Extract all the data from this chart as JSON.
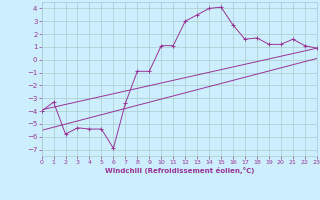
{
  "xlabel": "Windchill (Refroidissement éolien,°C)",
  "bg_color": "#cceeff",
  "grid_color": "#aacccc",
  "line_color": "#993399",
  "xlim": [
    0,
    23
  ],
  "ylim": [
    -7.5,
    4.5
  ],
  "xticks": [
    0,
    1,
    2,
    3,
    4,
    5,
    6,
    7,
    8,
    9,
    10,
    11,
    12,
    13,
    14,
    15,
    16,
    17,
    18,
    19,
    20,
    21,
    22,
    23
  ],
  "yticks": [
    -7,
    -6,
    -5,
    -4,
    -3,
    -2,
    -1,
    0,
    1,
    2,
    3,
    4
  ],
  "line1_x": [
    0,
    1,
    2,
    3,
    4,
    5,
    6,
    7,
    8,
    9,
    10,
    11,
    12,
    13,
    14,
    15,
    16,
    17,
    18,
    19,
    20,
    21,
    22,
    23
  ],
  "line1_y": [
    -4.0,
    -3.3,
    -5.8,
    -5.3,
    -5.4,
    -5.4,
    -6.9,
    -3.4,
    -0.9,
    -0.9,
    1.1,
    1.1,
    3.0,
    3.5,
    4.0,
    4.1,
    2.7,
    1.6,
    1.7,
    1.2,
    1.2,
    1.6,
    1.1,
    0.9
  ],
  "line2_x": [
    0,
    23
  ],
  "line2_y": [
    -5.5,
    0.1
  ],
  "line3_x": [
    0,
    23
  ],
  "line3_y": [
    -3.9,
    0.9
  ]
}
